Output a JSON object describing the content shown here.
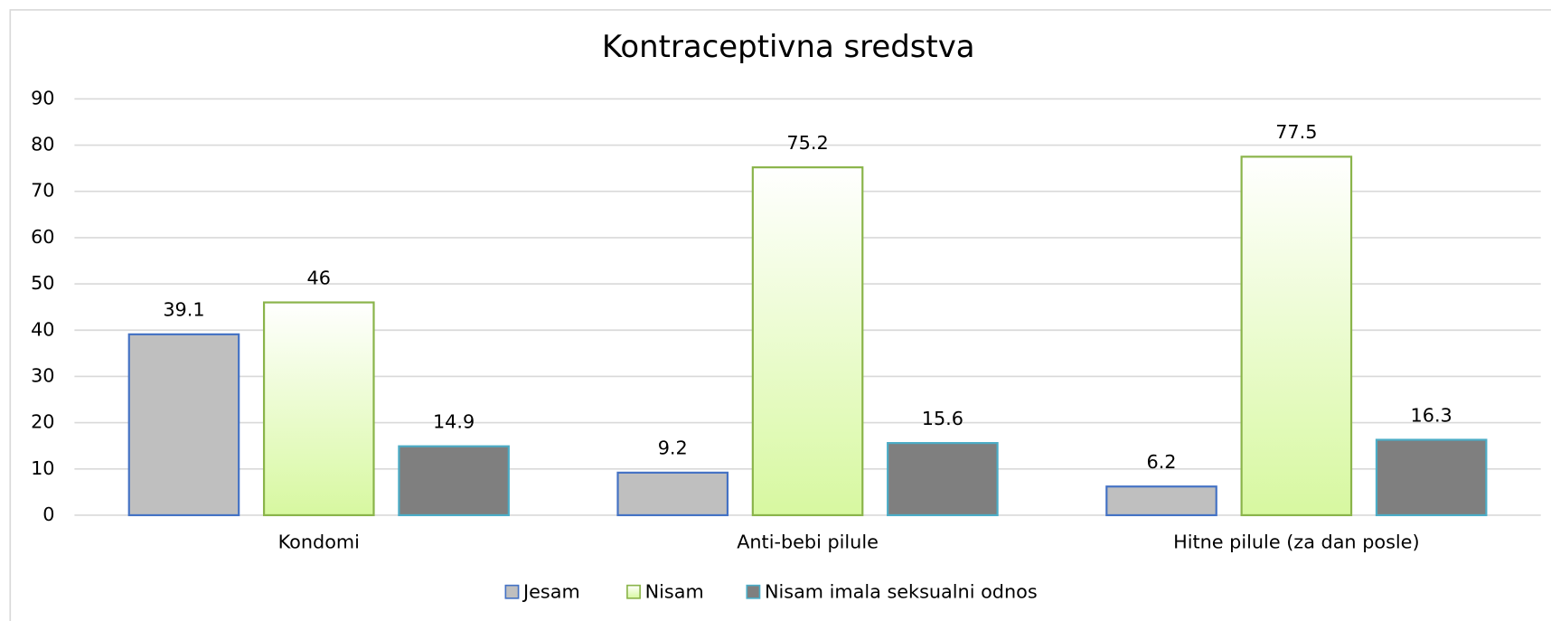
{
  "chart_data": {
    "type": "bar",
    "title": "Kontraceptivna sredstva",
    "categories": [
      "Kondomi",
      "Anti-bebi pilule",
      "Hitne pilule (za dan posle)"
    ],
    "series": [
      {
        "name": "Jesam",
        "color": "#bfbfbf",
        "edgecolor": "#4472c4",
        "values": [
          39.1,
          9.2,
          6.2
        ]
      },
      {
        "name": "Nisam",
        "color": "#d7f8a0",
        "edgecolor": "#8ab44a",
        "values": [
          46,
          75.2,
          77.5
        ]
      },
      {
        "name": "Nisam imala seksualni odnos",
        "color": "#7f7f7f",
        "edgecolor": "#4bacc6",
        "values": [
          14.9,
          15.6,
          16.3
        ]
      }
    ],
    "ylim": [
      0,
      90
    ],
    "yticks": [
      0,
      10,
      20,
      30,
      40,
      50,
      60,
      70,
      80,
      90
    ],
    "grid": true,
    "legend": "bottom"
  }
}
